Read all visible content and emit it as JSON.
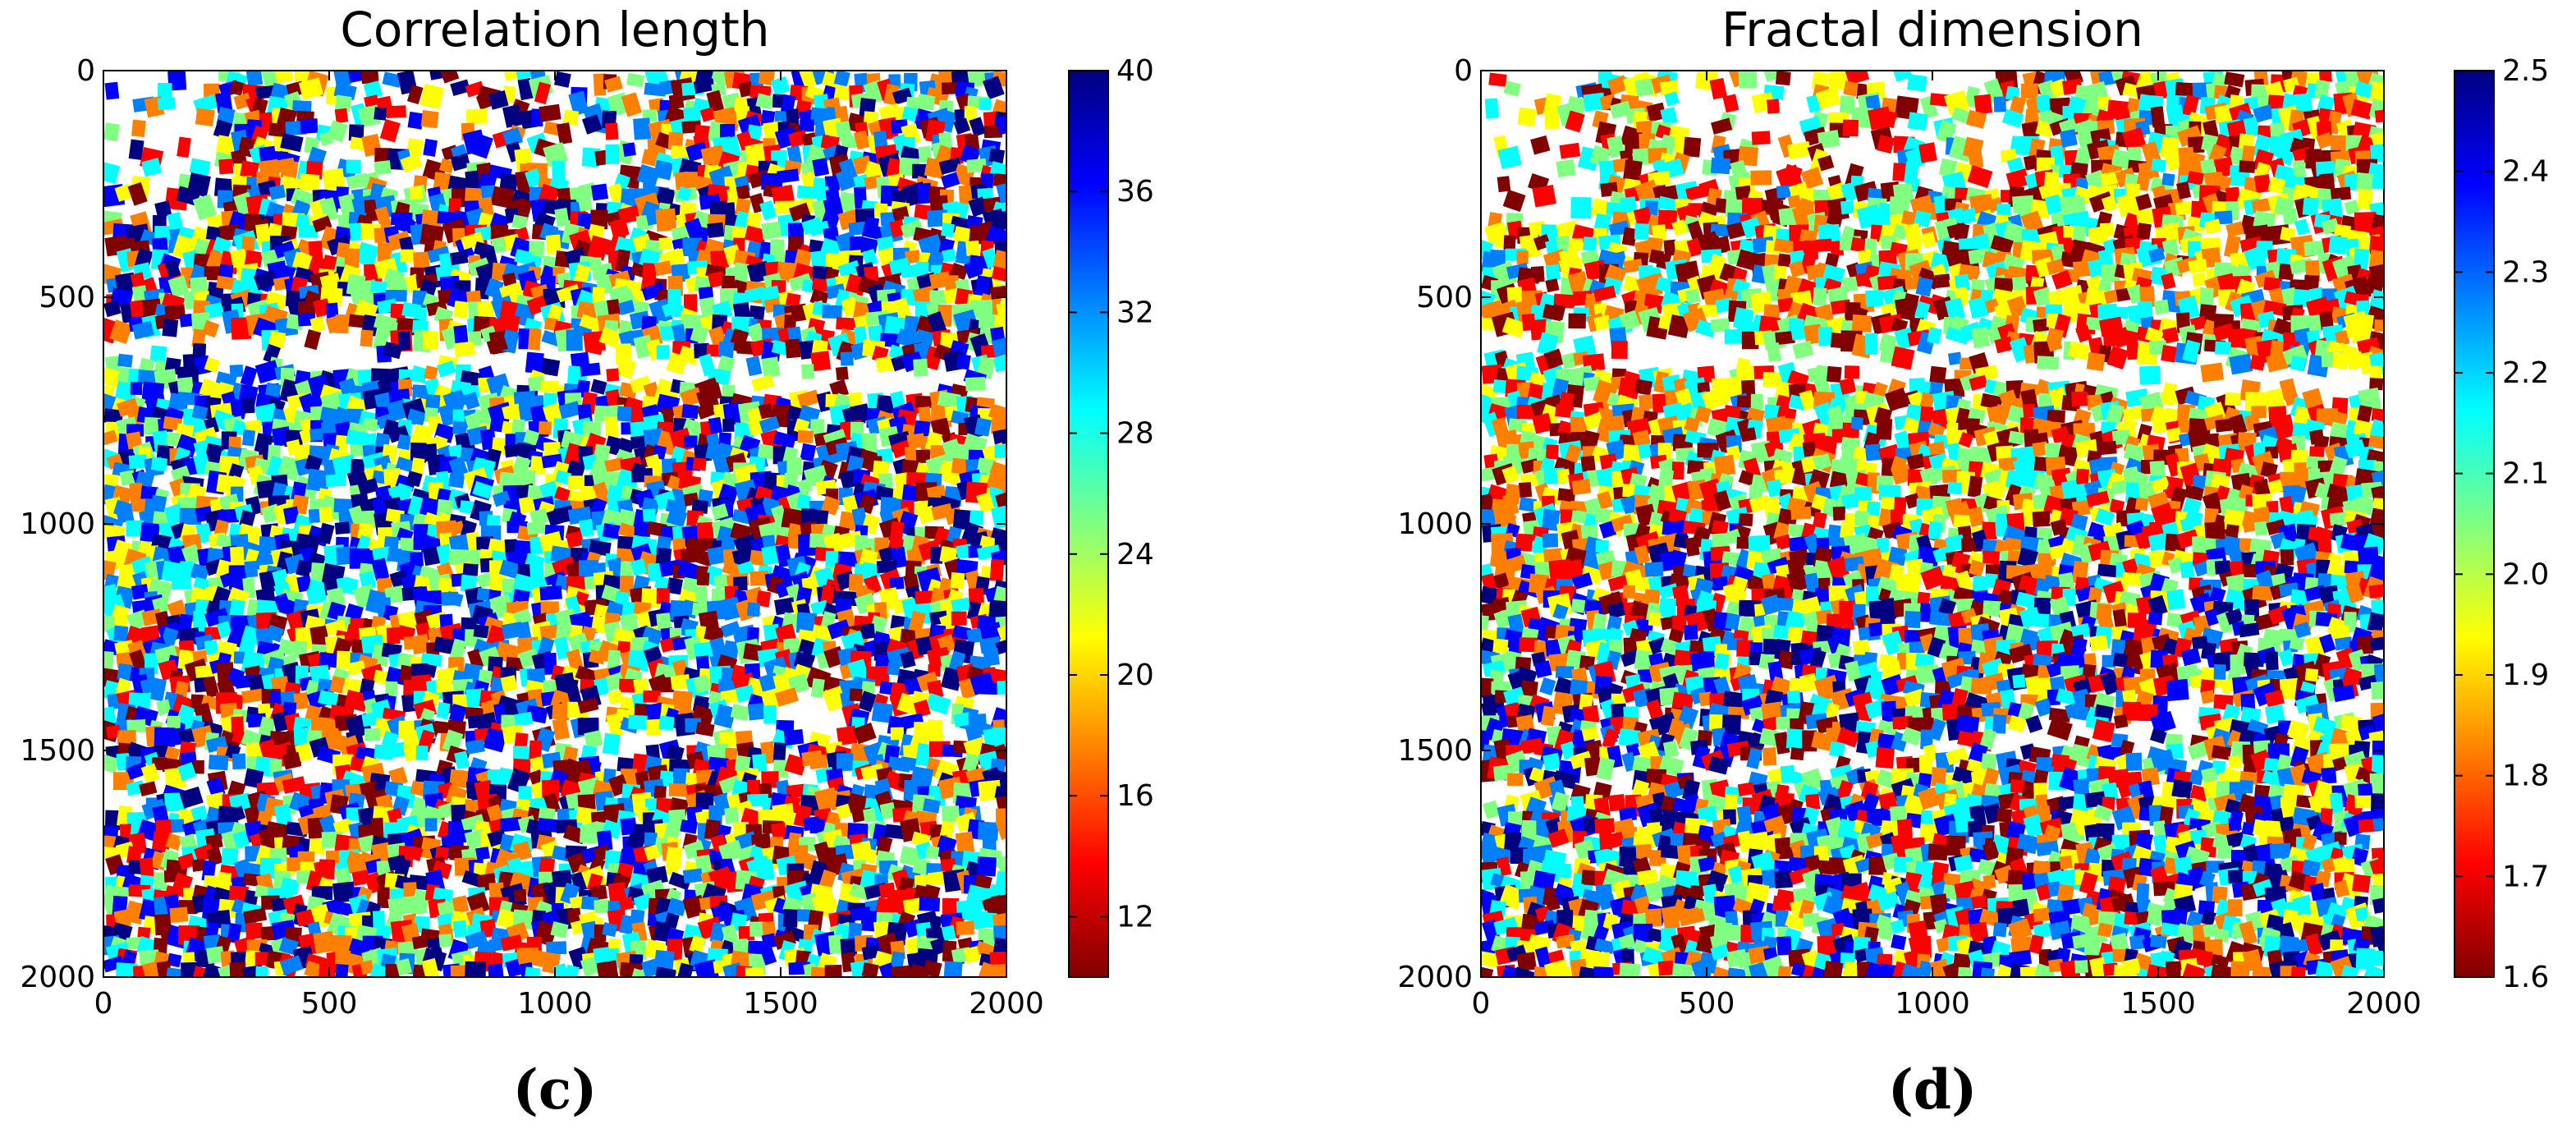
{
  "chart_data": [
    {
      "type": "heatmap",
      "title": "Correlation length",
      "caption": "(c)",
      "xlim": [
        0,
        2000
      ],
      "ylim": [
        2000,
        0
      ],
      "x_ticks": [
        0,
        500,
        1000,
        1500,
        2000
      ],
      "y_ticks": [
        0,
        500,
        1000,
        1500,
        2000
      ],
      "x_tick_labels": [
        "0",
        "500",
        "1000",
        "1500",
        "2000"
      ],
      "y_tick_labels": [
        "0",
        "500",
        "1000",
        "1500",
        "2000"
      ],
      "colormap": "jet_r",
      "colorbar": {
        "min": 10,
        "max": 40,
        "ticks": [
          12,
          16,
          20,
          24,
          28,
          32,
          36,
          40
        ],
        "tick_labels": [
          "12",
          "16",
          "20",
          "24",
          "28",
          "32",
          "36",
          "40"
        ]
      },
      "colormap_stops": [
        "#800000",
        "#ff0000",
        "#ff8000",
        "#ffff00",
        "#80ff80",
        "#00ffff",
        "#0080ff",
        "#0000ff",
        "#000080"
      ]
    },
    {
      "type": "heatmap",
      "title": "Fractal dimension",
      "caption": "(d)",
      "xlim": [
        0,
        2000
      ],
      "ylim": [
        2000,
        0
      ],
      "x_ticks": [
        0,
        500,
        1000,
        1500,
        2000
      ],
      "y_ticks": [
        0,
        500,
        1000,
        1500,
        2000
      ],
      "x_tick_labels": [
        "0",
        "500",
        "1000",
        "1500",
        "2000"
      ],
      "y_tick_labels": [
        "0",
        "500",
        "1000",
        "1500",
        "2000"
      ],
      "colormap": "jet_r",
      "colorbar": {
        "min": 1.6,
        "max": 2.5,
        "ticks": [
          1.6,
          1.7,
          1.8,
          1.9,
          2.0,
          2.1,
          2.2,
          2.3,
          2.4,
          2.5
        ],
        "tick_labels": [
          "1.6",
          "1.7",
          "1.8",
          "1.9",
          "2.0",
          "2.1",
          "2.2",
          "2.3",
          "2.4",
          "2.5"
        ]
      },
      "colormap_stops": [
        "#800000",
        "#ff0000",
        "#ff8000",
        "#ffff00",
        "#80ff80",
        "#00ffff",
        "#0080ff",
        "#0000ff",
        "#000080"
      ]
    }
  ]
}
